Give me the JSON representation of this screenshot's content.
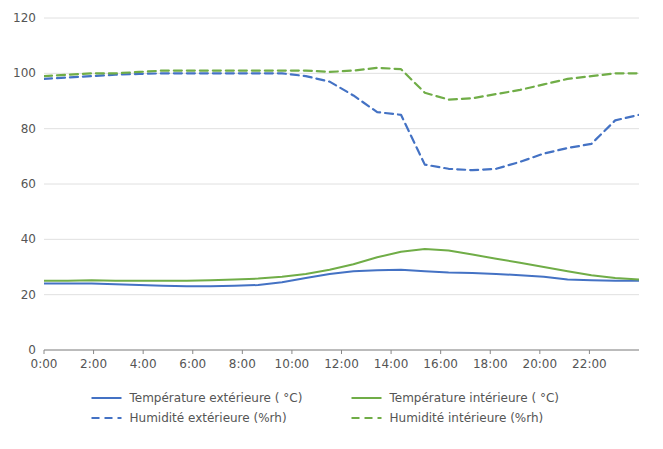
{
  "chart_data": {
    "type": "line",
    "x": [
      0,
      0.96,
      1.92,
      2.88,
      3.84,
      4.8,
      5.76,
      6.72,
      7.68,
      8.64,
      9.6,
      10.56,
      11.52,
      12.48,
      13.44,
      14.4,
      15.36,
      16.32,
      17.28,
      18.24,
      19.2,
      20.16,
      21.12,
      22.08,
      23.04,
      24
    ],
    "series": [
      {
        "name": "Température extérieure ( °C)",
        "color": "#4472C4",
        "line_style": "solid",
        "values": [
          24.0,
          24.0,
          24.0,
          23.8,
          23.5,
          23.2,
          23.0,
          23.0,
          23.2,
          23.5,
          24.5,
          26.0,
          27.5,
          28.5,
          28.8,
          29.0,
          28.5,
          28.0,
          27.8,
          27.5,
          27.0,
          26.5,
          25.5,
          25.2,
          25.0,
          25.0
        ]
      },
      {
        "name": "Température intérieure ( °C)",
        "color": "#70AD47",
        "line_style": "solid",
        "values": [
          25.0,
          25.0,
          25.2,
          25.0,
          25.0,
          25.0,
          25.0,
          25.2,
          25.5,
          25.8,
          26.5,
          27.5,
          29.0,
          31.0,
          33.5,
          35.5,
          36.5,
          36.0,
          34.5,
          33.0,
          31.5,
          30.0,
          28.5,
          27.0,
          26.0,
          25.5
        ]
      },
      {
        "name": "Humidité extérieure (%rh)",
        "color": "#4472C4",
        "line_style": "dashed",
        "values": [
          98.0,
          98.5,
          99.0,
          99.5,
          99.8,
          100.0,
          100.0,
          100.0,
          100.0,
          100.0,
          100.0,
          99.0,
          97.0,
          92.0,
          86.0,
          85.0,
          67.0,
          65.5,
          65.0,
          65.5,
          68.0,
          71.0,
          73.0,
          74.5,
          83.0,
          85.0
        ]
      },
      {
        "name": "Humidité intérieure (%rh)",
        "color": "#70AD47",
        "line_style": "dashed",
        "values": [
          99.0,
          99.5,
          100.0,
          100.0,
          100.5,
          101.0,
          101.0,
          101.0,
          101.0,
          101.0,
          101.0,
          101.0,
          100.5,
          101.0,
          102.0,
          101.5,
          93.0,
          90.5,
          91.0,
          92.5,
          94.0,
          96.0,
          98.0,
          99.0,
          100.0,
          100.0
        ]
      }
    ],
    "xlim": [
      0,
      24
    ],
    "xticks": [
      {
        "value": 0,
        "label": "0:00"
      },
      {
        "value": 2,
        "label": "2:00"
      },
      {
        "value": 4,
        "label": "4:00"
      },
      {
        "value": 6,
        "label": "6:00"
      },
      {
        "value": 8,
        "label": "8:00"
      },
      {
        "value": 10,
        "label": "10:00"
      },
      {
        "value": 12,
        "label": "12:00"
      },
      {
        "value": 14,
        "label": "14:00"
      },
      {
        "value": 16,
        "label": "16:00"
      },
      {
        "value": 18,
        "label": "18:00"
      },
      {
        "value": 20,
        "label": "20:00"
      },
      {
        "value": 22,
        "label": "22:00"
      }
    ],
    "ylim": [
      0,
      120
    ],
    "yticks": [
      0,
      20,
      40,
      60,
      80,
      100,
      120
    ],
    "grid": true,
    "legend": "bottom"
  }
}
